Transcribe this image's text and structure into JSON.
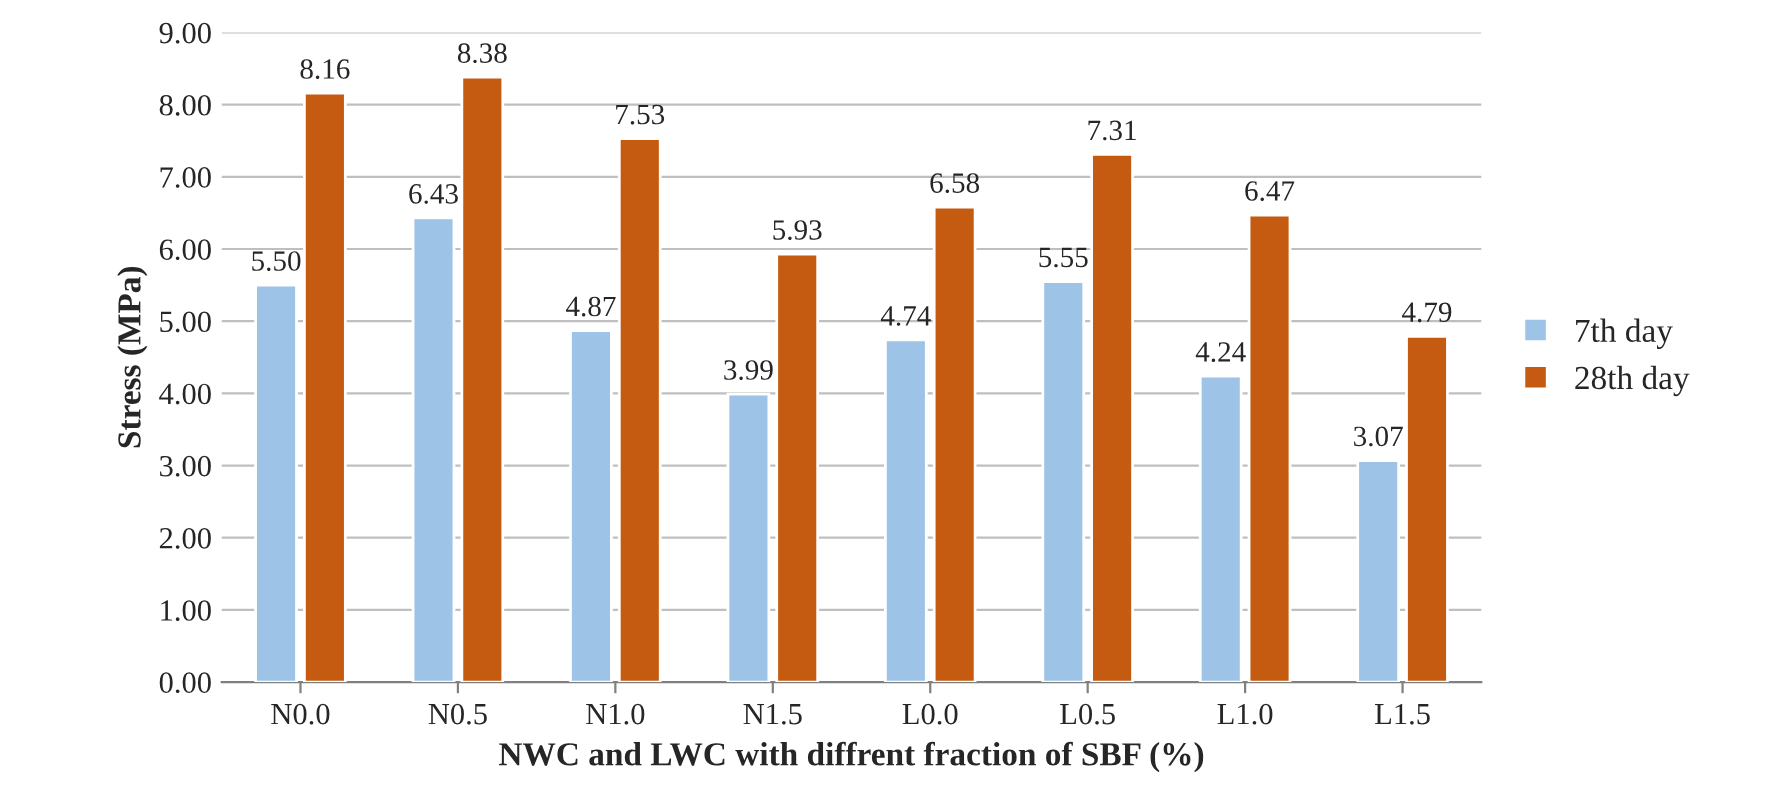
{
  "chart_data": {
    "type": "bar",
    "xlabel": "NWC and LWC with diffrent fraction of SBF (%)",
    "ylabel": "Stress (MPa)",
    "categories": [
      "N0.0",
      "N0.5",
      "N1.0",
      "N1.5",
      "L0.0",
      "L0.5",
      "L1.0",
      "L1.5"
    ],
    "series": [
      {
        "name": "7th day",
        "color": "#9dc3e6",
        "values": [
          5.5,
          6.43,
          4.87,
          3.99,
          4.74,
          5.55,
          4.24,
          3.07
        ],
        "value_labels": [
          "5.50",
          "6.43",
          "4.87",
          "3.99",
          "4.74",
          "5.55",
          "4.24",
          "3.07"
        ]
      },
      {
        "name": "28th day",
        "color": "#c55a11",
        "values": [
          8.16,
          8.38,
          7.53,
          5.93,
          6.58,
          7.31,
          6.47,
          4.79
        ],
        "value_labels": [
          "8.16",
          "8.38",
          "7.53",
          "5.93",
          "6.58",
          "7.31",
          "6.47",
          "4.79"
        ]
      }
    ],
    "ylim": [
      0,
      9
    ],
    "yticks": [
      {
        "value": 0,
        "label": "0.00"
      },
      {
        "value": 1,
        "label": "1.00"
      },
      {
        "value": 2,
        "label": "2.00"
      },
      {
        "value": 3,
        "label": "3.00"
      },
      {
        "value": 4,
        "label": "4.00"
      },
      {
        "value": 5,
        "label": "5.00"
      },
      {
        "value": 6,
        "label": "6.00"
      },
      {
        "value": 7,
        "label": "7.00"
      },
      {
        "value": 8,
        "label": "8.00"
      },
      {
        "value": 9,
        "label": "9.00"
      }
    ],
    "grid": "y",
    "legend": "right"
  }
}
